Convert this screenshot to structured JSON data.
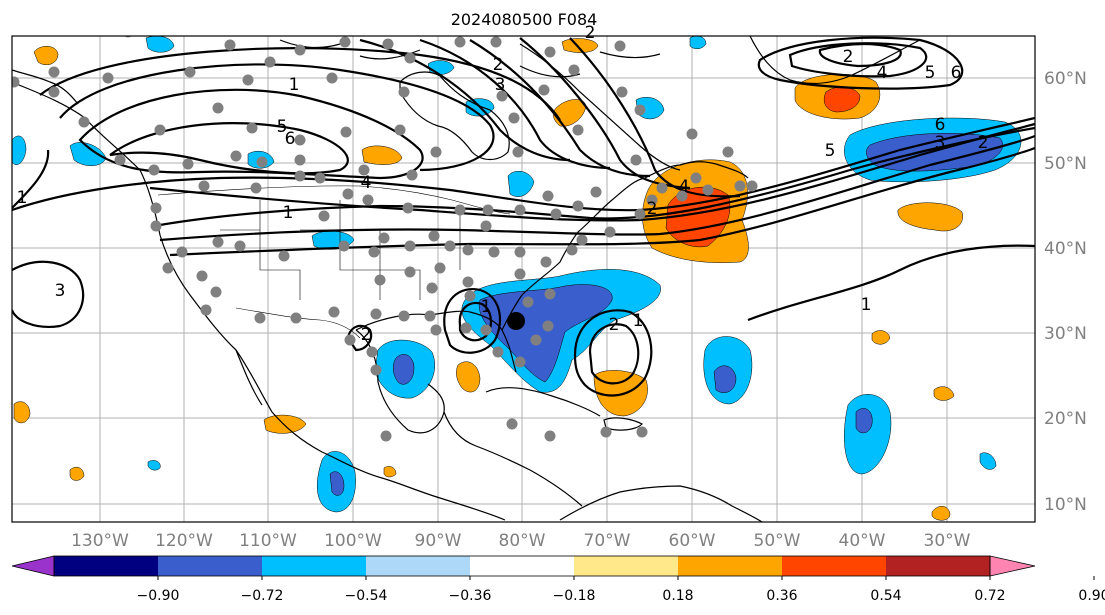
{
  "title": "2024080500 F084",
  "lon_labels": [
    "130°W",
    "120°W",
    "110°W",
    "100°W",
    "90°W",
    "80°W",
    "70°W",
    "60°W",
    "50°W",
    "40°W",
    "30°W"
  ],
  "lat_labels": [
    "60°N",
    "50°N",
    "40°N",
    "30°N",
    "20°N",
    "10°N"
  ],
  "colorbar": {
    "colors": [
      "#9933cc",
      "#000080",
      "#3a5fcd",
      "#00bfff",
      "#add8f7",
      "#ffffff",
      "#ffe88a",
      "#ffa500",
      "#ff4500",
      "#b22222",
      "#ff85b0"
    ],
    "ticks": [
      "−0.90",
      "−0.72",
      "−0.54",
      "−0.36",
      "−0.18",
      "0.18",
      "0.36",
      "0.54",
      "0.72",
      "0.90"
    ]
  },
  "contour_labels": [
    "1",
    "2",
    "2",
    "3",
    "4",
    "5",
    "6",
    "1",
    "2",
    "4",
    "5",
    "6",
    "6",
    "3",
    "2",
    "5",
    "1",
    "4",
    "1",
    "2",
    "1",
    "3",
    "2",
    "2",
    "1"
  ]
}
